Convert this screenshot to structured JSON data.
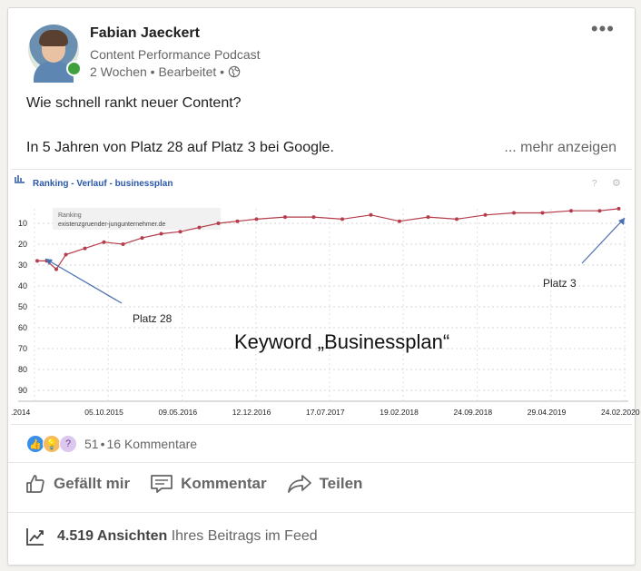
{
  "author": {
    "name": "Fabian Jaeckert",
    "subtitle": "Content Performance Podcast",
    "meta": "2 Wochen • Bearbeitet •"
  },
  "post": {
    "line1": "Wie schnell rankt neuer Content?",
    "line2": "In 5 Jahren von Platz 28 auf Platz 3 bei Google.",
    "more": "... mehr anzeigen"
  },
  "chart_data": {
    "type": "line",
    "title": "Ranking - Verlauf - businessplan",
    "legend": [
      "Ranking",
      "existenzgruender-jungunternehmer.de"
    ],
    "overlay_text": "Keyword „Businessplan“",
    "annotations": [
      "Platz 28",
      "Platz 3"
    ],
    "y_ticks": [
      10,
      20,
      30,
      40,
      50,
      60,
      70,
      80,
      90
    ],
    "ylim": [
      100,
      0
    ],
    "x_tick_labels": [
      ".2014",
      "05.10.2015",
      "09.05.2016",
      "12.12.2016",
      "17.07.2017",
      "19.02.2018",
      "24.09.2018",
      "29.04.2019",
      "24.02.2020"
    ],
    "series": [
      {
        "x_dates": [
          "2015-01",
          "2015-02",
          "2015-03",
          "2015-04",
          "2015-06",
          "2015-08",
          "2015-10",
          "2015-12",
          "2016-02",
          "2016-04",
          "2016-06",
          "2016-08",
          "2016-10",
          "2016-12",
          "2017-03",
          "2017-06",
          "2017-09",
          "2017-12",
          "2018-03",
          "2018-06",
          "2018-09",
          "2018-12",
          "2019-03",
          "2019-06",
          "2019-09",
          "2019-12",
          "2020-02"
        ],
        "values": [
          28,
          28,
          32,
          25,
          22,
          19,
          20,
          17,
          15,
          14,
          12,
          10,
          9,
          8,
          7,
          7,
          8,
          6,
          9,
          7,
          8,
          6,
          5,
          5,
          4,
          4,
          3
        ]
      }
    ],
    "colors": {
      "line": "#b53c4b",
      "annotation": "#4a6fb0"
    }
  },
  "reactions": {
    "count": "51",
    "separator": "•",
    "comments": "16 Kommentare"
  },
  "actions": {
    "like": "Gefällt mir",
    "comment": "Kommentar",
    "share": "Teilen"
  },
  "views": {
    "count": "4.519 Ansichten",
    "suffix": "Ihres Beitrags im Feed"
  },
  "icons": [
    "more-icon",
    "globe-icon",
    "like-reaction-icon",
    "insightful-reaction-icon",
    "curious-reaction-icon",
    "thumbs-up-icon",
    "comment-icon",
    "share-icon",
    "analytics-icon"
  ]
}
